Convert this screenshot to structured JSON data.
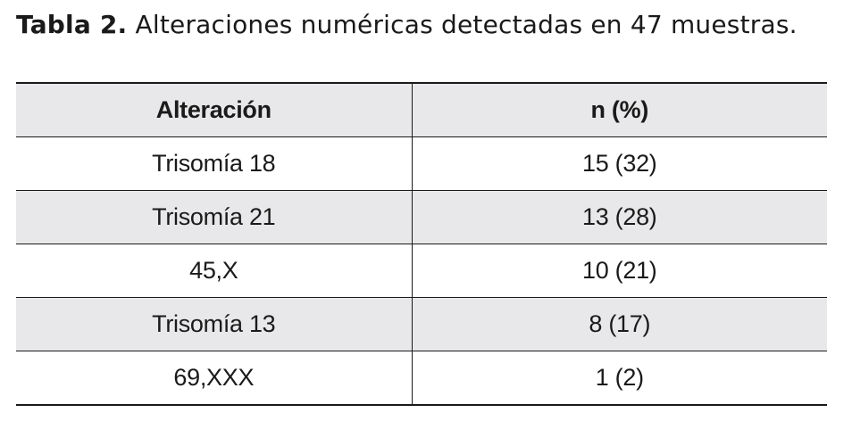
{
  "caption": {
    "label": "Tabla 2.",
    "text": "Alteraciones numéricas detectadas en 47 muestras."
  },
  "table": {
    "headers": [
      "Alteración",
      "n (%)"
    ],
    "rows": [
      [
        "Trisomía 18",
        "15 (32)"
      ],
      [
        "Trisomía 21",
        "13 (28)"
      ],
      [
        "45,X",
        "10 (21)"
      ],
      [
        "Trisomía 13",
        "8 (17)"
      ],
      [
        "69,XXX",
        "1 (2)"
      ]
    ]
  },
  "colors": {
    "shaded_row": "#e8e8ea",
    "rule": "#1a1a1a"
  }
}
